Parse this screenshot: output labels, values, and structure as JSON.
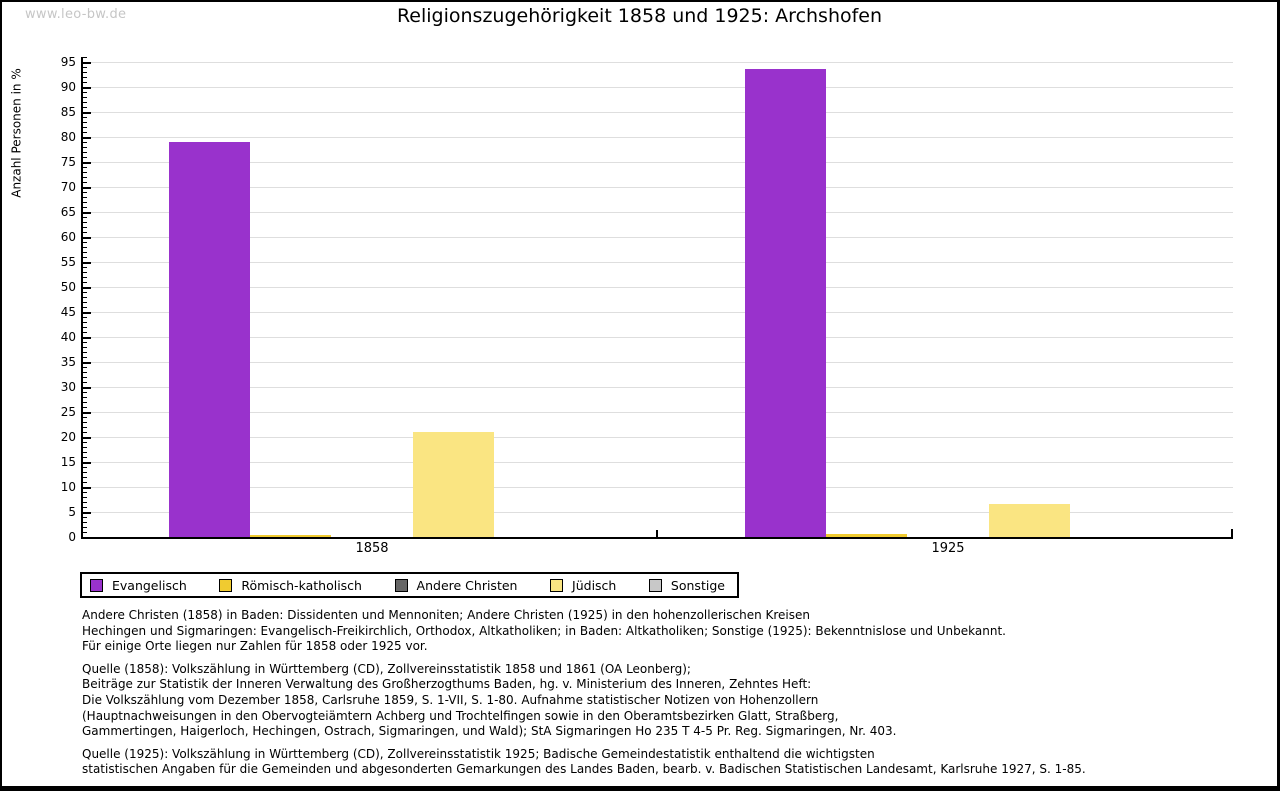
{
  "watermark": "www.leo-bw.de",
  "title": "Religionszugehörigkeit 1858 und 1925: Archshofen",
  "chart_data": {
    "type": "bar",
    "title": "Religionszugehörigkeit 1858 und 1925: Archshofen",
    "xlabel": "",
    "ylabel": "Anzahl Personen in %",
    "categories": [
      "1858",
      "1925"
    ],
    "series": [
      {
        "name": "Evangelisch",
        "color": "#9932cc",
        "values": [
          79.0,
          93.6
        ]
      },
      {
        "name": "Römisch-katholisch",
        "color": "#f0cb30",
        "values": [
          0.4,
          0.6
        ]
      },
      {
        "name": "Andere Christen",
        "color": "#666666",
        "values": [
          0.0,
          0.0
        ]
      },
      {
        "name": "Jüdisch",
        "color": "#fae582",
        "values": [
          21.0,
          6.6
        ]
      },
      {
        "name": "Sonstige",
        "color": "#c8c8c8",
        "values": [
          0.0,
          0.0
        ]
      }
    ],
    "ylim": [
      0,
      95
    ],
    "y_tick_step": 5,
    "y_minor_tick_step": 1,
    "grid": true,
    "legend_position": "bottom"
  },
  "footnotes": [
    {
      "lines": [
        "Andere Christen (1858) in Baden: Dissidenten und Mennoniten; Andere Christen (1925) in den hohenzollerischen Kreisen",
        "Hechingen und Sigmaringen: Evangelisch-Freikirchlich, Orthodox, Altkatholiken; in Baden: Altkatholiken; Sonstige (1925): Bekenntnislose und Unbekannt.",
        "Für einige Orte liegen nur Zahlen für 1858 oder 1925 vor."
      ]
    },
    {
      "lines": [
        "Quelle (1858): Volkszählung in Württemberg (CD), Zollvereinsstatistik 1858 und 1861 (OA Leonberg);",
        "Beiträge zur Statistik der Inneren Verwaltung des Großherzogthums Baden, hg. v. Ministerium des Inneren, Zehntes Heft:",
        "Die Volkszählung vom Dezember 1858, Carlsruhe 1859, S. 1-VII, S. 1-80. Aufnahme statistischer Notizen von Hohenzollern",
        "(Hauptnachweisungen in den Obervogteiämtern Achberg und Trochtelfingen sowie in den Oberamtsbezirken Glatt, Straßberg,",
        "Gammertingen, Haigerloch, Hechingen, Ostrach, Sigmaringen, und Wald); StA Sigmaringen Ho 235 T 4-5 Pr. Reg. Sigmaringen, Nr. 403."
      ]
    },
    {
      "lines": [
        "Quelle (1925): Volkszählung in Württemberg (CD), Zollvereinsstatistik 1925; Badische Gemeindestatistik enthaltend die wichtigsten",
        "statistischen Angaben für die Gemeinden und abgesonderten Gemarkungen des Landes Baden, bearb. v. Badischen Statistischen Landesamt, Karlsruhe 1927, S. 1-85."
      ]
    }
  ]
}
